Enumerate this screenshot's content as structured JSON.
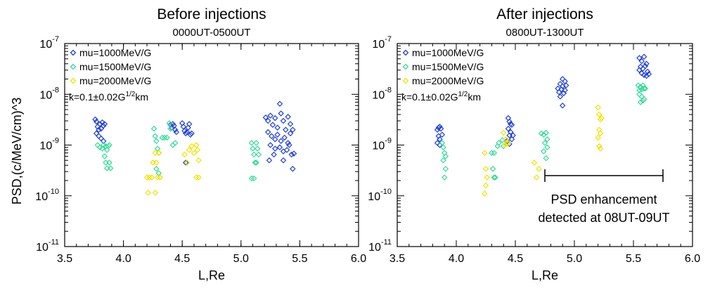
{
  "figure": {
    "ylabel": "PSD,(c/MeV/cm)^3",
    "xlabel": "L,Re"
  },
  "chart_data": [
    {
      "type": "scatter",
      "title": "Before injections",
      "subtitle": "0000UT-0500UT",
      "xlabel": "L,Re",
      "ylabel": "PSD,(c/MeV/cm)^3",
      "xlim": [
        3.5,
        6.0
      ],
      "ylim": [
        1e-11,
        1e-07
      ],
      "yscale": "log",
      "xticks": [
        "3.5",
        "4.0",
        "4.5",
        "5.0",
        "5.5",
        "6.0"
      ],
      "yticks": [
        -11,
        -10,
        -9,
        -8,
        -7
      ],
      "grid": false,
      "legend_position": "top-left",
      "annotation": {
        "base": "k=0.1±0.02G",
        "sup": "1/2",
        "tail": "km"
      },
      "series": [
        {
          "name": "mu=1000MeV/G",
          "color": "#1f3fd8",
          "points": [
            [
              3.76,
              3.2e-09
            ],
            [
              3.77,
              2.9e-09
            ],
            [
              3.78,
              2.3e-09
            ],
            [
              3.79,
              2e-09
            ],
            [
              3.8,
              2.6e-09
            ],
            [
              3.81,
              2.1e-09
            ],
            [
              3.82,
              2.8e-09
            ],
            [
              3.83,
              2.4e-09
            ],
            [
              3.84,
              2.6e-09
            ],
            [
              3.77,
              1.7e-09
            ],
            [
              3.79,
              1.5e-09
            ],
            [
              3.81,
              1.35e-09
            ],
            [
              3.83,
              1.2e-09
            ],
            [
              4.4,
              2.5e-09
            ],
            [
              4.41,
              2.2e-09
            ],
            [
              4.42,
              2.6e-09
            ],
            [
              4.43,
              2.4e-09
            ],
            [
              4.44,
              2e-09
            ],
            [
              4.45,
              1.8e-09
            ],
            [
              4.5,
              2.7e-09
            ],
            [
              4.51,
              2.3e-09
            ],
            [
              4.52,
              1.9e-09
            ],
            [
              4.53,
              1.7e-09
            ],
            [
              4.54,
              1.8e-09
            ],
            [
              4.55,
              2.2e-09
            ],
            [
              4.56,
              2.6e-09
            ],
            [
              4.57,
              1.6e-09
            ],
            [
              4.58,
              1.7e-09
            ],
            [
              4.53,
              4.5e-10
            ],
            [
              5.21,
              3.5e-09
            ],
            [
              5.23,
              3e-09
            ],
            [
              5.25,
              3.8e-09
            ],
            [
              5.27,
              2.5e-09
            ],
            [
              5.29,
              3.4e-09
            ],
            [
              5.31,
              2.2e-09
            ],
            [
              5.33,
              6.5e-09
            ],
            [
              5.34,
              4.2e-09
            ],
            [
              5.36,
              3e-09
            ],
            [
              5.38,
              2e-09
            ],
            [
              5.4,
              3.6e-09
            ],
            [
              5.42,
              2.6e-09
            ],
            [
              5.44,
              2e-09
            ],
            [
              5.23,
              1.8e-09
            ],
            [
              5.26,
              1.5e-09
            ],
            [
              5.29,
              1.3e-09
            ],
            [
              5.31,
              1.6e-09
            ],
            [
              5.34,
              1.2e-09
            ],
            [
              5.37,
              1.4e-09
            ],
            [
              5.4,
              1.1e-09
            ],
            [
              5.42,
              1.7e-09
            ],
            [
              5.25,
              1e-09
            ],
            [
              5.29,
              8.5e-10
            ],
            [
              5.33,
              9e-10
            ],
            [
              5.36,
              7.5e-10
            ],
            [
              5.39,
              8e-10
            ],
            [
              5.41,
              1e-09
            ],
            [
              5.24,
              5e-10
            ],
            [
              5.28,
              6.5e-10
            ],
            [
              5.36,
              5e-10
            ],
            [
              5.43,
              6.5e-10
            ],
            [
              5.45,
              6.8e-10
            ],
            [
              5.44,
              3.4e-10
            ]
          ]
        },
        {
          "name": "mu=1500MeV/G",
          "color": "#33dd99",
          "points": [
            [
              3.78,
              1e-09
            ],
            [
              3.8,
              9e-10
            ],
            [
              3.82,
              8.5e-10
            ],
            [
              3.83,
              1e-09
            ],
            [
              3.85,
              9.5e-10
            ],
            [
              3.86,
              8e-10
            ],
            [
              3.87,
              9.5e-10
            ],
            [
              3.88,
              1e-09
            ],
            [
              3.84,
              6e-10
            ],
            [
              3.85,
              4.5e-10
            ],
            [
              3.86,
              3.5e-10
            ],
            [
              3.88,
              4.5e-10
            ],
            [
              3.89,
              3.5e-10
            ],
            [
              4.26,
              2.1e-09
            ],
            [
              4.27,
              1.5e-09
            ],
            [
              4.28,
              1.2e-09
            ],
            [
              4.29,
              8.5e-10
            ],
            [
              4.3,
              7e-10
            ],
            [
              4.28,
              3.4e-10
            ],
            [
              4.3,
              2.8e-10
            ],
            [
              4.31,
              2.3e-10
            ],
            [
              4.33,
              1.4e-09
            ],
            [
              4.35,
              1.4e-09
            ],
            [
              4.37,
              1.4e-09
            ],
            [
              4.39,
              2.7e-09
            ],
            [
              4.4,
              2.1e-09
            ],
            [
              4.42,
              1e-09
            ],
            [
              4.44,
              1.1e-09
            ],
            [
              5.09,
              1.1e-09
            ],
            [
              5.1,
              8.5e-10
            ],
            [
              5.11,
              6.5e-10
            ],
            [
              5.12,
              4.5e-10
            ],
            [
              5.13,
              1.1e-09
            ],
            [
              5.14,
              8.5e-10
            ],
            [
              5.15,
              6.5e-10
            ],
            [
              5.13,
              4.5e-10
            ],
            [
              5.09,
              2.2e-10
            ],
            [
              5.11,
              2.2e-10
            ]
          ]
        },
        {
          "name": "mu=2000MeV/G",
          "color": "#f2e300",
          "points": [
            [
              4.2,
              2.3e-10
            ],
            [
              4.22,
              2.3e-10
            ],
            [
              4.24,
              2.3e-10
            ],
            [
              4.21,
              1.15e-10
            ],
            [
              4.27,
              1.15e-10
            ],
            [
              4.25,
              4.5e-10
            ],
            [
              4.27,
              7e-10
            ],
            [
              4.28,
              4.5e-10
            ],
            [
              4.3,
              7e-10
            ],
            [
              4.29,
              2.3e-10
            ],
            [
              4.31,
              2.3e-10
            ],
            [
              4.52,
              6.5e-10
            ],
            [
              4.54,
              4.5e-10
            ],
            [
              4.56,
              8e-10
            ],
            [
              4.58,
              9.5e-10
            ],
            [
              4.6,
              7e-10
            ],
            [
              4.62,
              1e-09
            ],
            [
              4.63,
              8e-10
            ],
            [
              4.64,
              5e-10
            ],
            [
              4.62,
              2.3e-10
            ],
            [
              4.64,
              2.3e-10
            ]
          ]
        }
      ]
    },
    {
      "type": "scatter",
      "title": "After injections",
      "subtitle": "0800UT-1300UT",
      "xlabel": "L,Re",
      "ylabel": "",
      "xlim": [
        3.5,
        6.0
      ],
      "ylim": [
        1e-11,
        1e-07
      ],
      "yscale": "log",
      "xticks": [
        "3.5",
        "4.0",
        "4.5",
        "5.0",
        "5.5",
        "6.0"
      ],
      "yticks": [
        -11,
        -10,
        -9,
        -8,
        -7
      ],
      "grid": false,
      "legend_position": "top-left",
      "annotation": {
        "base": "k=0.1±0.02G",
        "sup": "1/2",
        "tail": "km"
      },
      "bracket": {
        "x0": 4.75,
        "x1": 5.75,
        "y": 2.5e-10,
        "text_lines": [
          "PSD enhancement",
          "detected at 08UT-09UT"
        ]
      },
      "series": [
        {
          "name": "mu=1000MeV/G",
          "color": "#1f3fd8",
          "points": [
            [
              3.84,
              2e-09
            ],
            [
              3.85,
              2.2e-09
            ],
            [
              3.86,
              2.3e-09
            ],
            [
              3.87,
              2.1e-09
            ],
            [
              3.85,
              1.5e-09
            ],
            [
              3.86,
              1.3e-09
            ],
            [
              3.84,
              1.1e-09
            ],
            [
              3.86,
              1e-09
            ],
            [
              3.88,
              1.6e-09
            ],
            [
              4.44,
              3.4e-09
            ],
            [
              4.45,
              2.9e-09
            ],
            [
              4.46,
              2.6e-09
            ],
            [
              4.47,
              2.5e-09
            ],
            [
              4.44,
              2.1e-09
            ],
            [
              4.46,
              1.8e-09
            ],
            [
              4.45,
              1.55e-09
            ],
            [
              4.48,
              1.55e-09
            ],
            [
              4.43,
              1.2e-09
            ],
            [
              4.47,
              1.3e-09
            ],
            [
              4.45,
              1.05e-09
            ],
            [
              4.9,
              2e-08
            ],
            [
              4.92,
              1.8e-08
            ],
            [
              4.88,
              1.6e-08
            ],
            [
              4.9,
              1.45e-08
            ],
            [
              4.93,
              1.5e-08
            ],
            [
              4.86,
              1.3e-08
            ],
            [
              4.89,
              1.25e-08
            ],
            [
              4.92,
              1.2e-08
            ],
            [
              4.87,
              1.1e-08
            ],
            [
              4.91,
              1.05e-08
            ],
            [
              4.88,
              9e-09
            ],
            [
              4.9,
              6e-09
            ],
            [
              5.55,
              5.2e-08
            ],
            [
              5.57,
              4.5e-08
            ],
            [
              5.59,
              5.5e-08
            ],
            [
              5.61,
              4e-08
            ],
            [
              5.56,
              3.5e-08
            ],
            [
              5.58,
              3.2e-08
            ],
            [
              5.6,
              3.6e-08
            ],
            [
              5.62,
              2.8e-08
            ],
            [
              5.55,
              3e-08
            ],
            [
              5.57,
              2.6e-08
            ],
            [
              5.59,
              2.4e-08
            ],
            [
              5.61,
              2.3e-08
            ],
            [
              5.63,
              2.5e-08
            ]
          ]
        },
        {
          "name": "mu=1500MeV/G",
          "color": "#33dd99",
          "points": [
            [
              3.88,
              1.1e-09
            ],
            [
              3.89,
              9e-10
            ],
            [
              3.9,
              7e-10
            ],
            [
              3.91,
              6e-10
            ],
            [
              3.89,
              5e-10
            ],
            [
              3.91,
              3.4e-10
            ],
            [
              3.9,
              2.3e-10
            ],
            [
              4.3,
              7e-10
            ],
            [
              4.32,
              7e-10
            ],
            [
              4.31,
              3.4e-10
            ],
            [
              4.32,
              2.3e-10
            ],
            [
              4.33,
              2.3e-10
            ],
            [
              4.35,
              9.5e-10
            ],
            [
              4.36,
              1.1e-09
            ],
            [
              4.39,
              1.25e-09
            ],
            [
              4.4,
              9.5e-10
            ],
            [
              4.72,
              1.7e-09
            ],
            [
              4.74,
              1.6e-09
            ],
            [
              4.76,
              1.75e-09
            ],
            [
              4.77,
              1.3e-09
            ],
            [
              4.75,
              1.1e-09
            ],
            [
              4.77,
              9e-10
            ],
            [
              4.74,
              7.5e-10
            ],
            [
              4.76,
              5.5e-10
            ],
            [
              5.54,
              1.5e-08
            ],
            [
              5.56,
              1.4e-08
            ],
            [
              5.58,
              1.5e-08
            ],
            [
              5.6,
              1.3e-08
            ],
            [
              5.55,
              1.2e-08
            ],
            [
              5.57,
              1.25e-08
            ],
            [
              5.59,
              1.3e-08
            ],
            [
              5.55,
              1e-08
            ],
            [
              5.57,
              9e-09
            ],
            [
              5.58,
              7.5e-09
            ],
            [
              5.56,
              7e-09
            ],
            [
              5.59,
              8e-09
            ]
          ]
        },
        {
          "name": "mu=2000MeV/G",
          "color": "#f2e300",
          "points": [
            [
              4.24,
              7e-10
            ],
            [
              4.25,
              3.4e-10
            ],
            [
              4.26,
              2.3e-10
            ],
            [
              4.25,
              1.6e-10
            ],
            [
              4.24,
              1.1e-10
            ],
            [
              4.4,
              1.75e-09
            ],
            [
              4.42,
              1.3e-09
            ],
            [
              4.41,
              1e-09
            ],
            [
              4.43,
              1.05e-09
            ],
            [
              4.44,
              1.1e-09
            ],
            [
              4.66,
              4.5e-10
            ],
            [
              4.68,
              2.3e-10
            ],
            [
              4.7,
              3.4e-10
            ],
            [
              5.2,
              5.5e-09
            ],
            [
              5.21,
              4e-09
            ],
            [
              5.22,
              3.2e-09
            ],
            [
              5.23,
              3.4e-09
            ],
            [
              5.21,
              2e-09
            ],
            [
              5.22,
              1.7e-09
            ],
            [
              5.2,
              1.4e-09
            ],
            [
              5.21,
              9.5e-10
            ],
            [
              5.22,
              8.5e-10
            ]
          ]
        }
      ]
    }
  ]
}
